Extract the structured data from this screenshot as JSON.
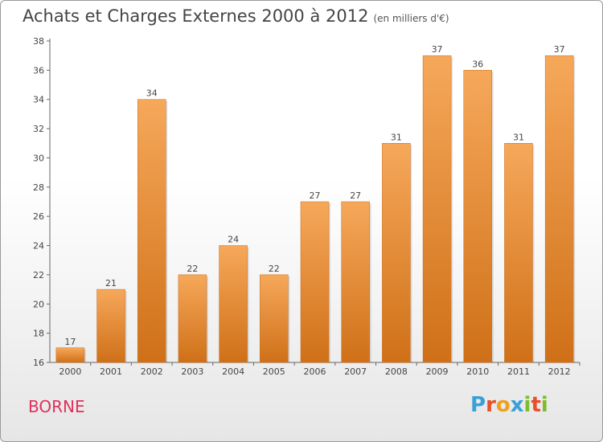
{
  "title": "Achats et Charges Externes 2000 à 2012",
  "unit": "(en milliers d'€)",
  "commune": "BORNE",
  "logo": {
    "text": "Proxiti",
    "letter_colors": [
      "#3aa0d8",
      "#e8502a",
      "#f0a020",
      "#3aa0d8",
      "#7cbc2a",
      "#e8502a",
      "#7cbc2a"
    ]
  },
  "colors": {
    "bar_light": "#f6a85a",
    "bar_dark": "#cf7018",
    "axis": "#666666",
    "grid": "#e5e5e5"
  },
  "chart_data": {
    "type": "bar",
    "categories": [
      "2000",
      "2001",
      "2002",
      "2003",
      "2004",
      "2005",
      "2006",
      "2007",
      "2008",
      "2009",
      "2010",
      "2011",
      "2012"
    ],
    "values": [
      17,
      21,
      34,
      22,
      24,
      22,
      27,
      27,
      31,
      37,
      36,
      31,
      37
    ],
    "title": "Achats et Charges Externes 2000 à 2012",
    "ylim": [
      16,
      38
    ],
    "yticks": [
      16,
      18,
      20,
      22,
      24,
      26,
      28,
      30,
      32,
      34,
      36,
      38
    ],
    "grid": false,
    "data_labels": true
  }
}
